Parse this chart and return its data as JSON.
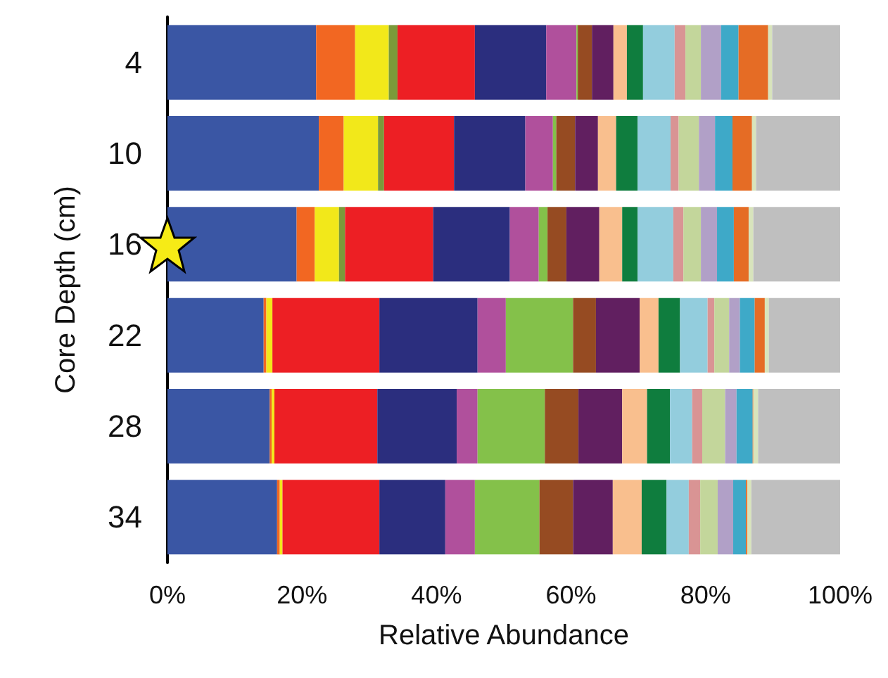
{
  "chart_data": {
    "type": "bar",
    "orientation": "horizontal",
    "stacked": true,
    "xlabel": "Relative Abundance",
    "ylabel": "Core Depth (cm)",
    "categories": [
      "4",
      "10",
      "16",
      "22",
      "28",
      "34"
    ],
    "xlim": [
      0,
      100
    ],
    "xticks": [
      {
        "value": 0,
        "label": "0%"
      },
      {
        "value": 20,
        "label": "20%"
      },
      {
        "value": 40,
        "label": "40%"
      },
      {
        "value": 60,
        "label": "60%"
      },
      {
        "value": 80,
        "label": "80%"
      },
      {
        "value": 100,
        "label": "100%"
      }
    ],
    "grid": false,
    "series": [
      {
        "color": "#3a56a4",
        "values": [
          22.1,
          22.5,
          19.2,
          14.3,
          15.2,
          16.3
        ]
      },
      {
        "color": "#f26722",
        "values": [
          5.8,
          3.7,
          2.7,
          0.4,
          0.3,
          0.4
        ]
      },
      {
        "color": "#f2e81a",
        "values": [
          5.0,
          5.1,
          3.6,
          0.9,
          0.4,
          0.4
        ]
      },
      {
        "color": "#7a9a3a",
        "values": [
          1.3,
          0.9,
          0.9,
          0,
          0,
          0
        ]
      },
      {
        "color": "#ed1f24",
        "values": [
          11.5,
          10.4,
          13.1,
          15.9,
          15.3,
          14.4
        ]
      },
      {
        "color": "#2b2e7e",
        "values": [
          10.6,
          10.6,
          11.4,
          14.6,
          11.8,
          9.8
        ]
      },
      {
        "color": "#b0509c",
        "values": [
          4.5,
          4.1,
          4.3,
          4.2,
          3.1,
          4.4
        ]
      },
      {
        "color": "#84c14a",
        "values": [
          0.2,
          0.5,
          1.3,
          10.0,
          10.0,
          9.6
        ]
      },
      {
        "color": "#964b22",
        "values": [
          2.1,
          2.8,
          2.8,
          3.4,
          5.0,
          5.0
        ]
      },
      {
        "color": "#611f60",
        "values": [
          3.2,
          3.4,
          4.9,
          6.5,
          6.5,
          5.9
        ]
      },
      {
        "color": "#f9bf8e",
        "values": [
          2.0,
          2.7,
          3.4,
          2.8,
          3.7,
          4.3
        ]
      },
      {
        "color": "#0f7d3e",
        "values": [
          2.4,
          3.2,
          2.3,
          3.2,
          3.4,
          3.7
        ]
      },
      {
        "color": "#93cddd",
        "values": [
          4.7,
          4.9,
          5.3,
          4.1,
          3.3,
          3.3
        ]
      },
      {
        "color": "#d99494",
        "values": [
          1.6,
          1.2,
          1.5,
          1.0,
          1.5,
          1.7
        ]
      },
      {
        "color": "#c3d69b",
        "values": [
          2.3,
          3.0,
          2.6,
          2.2,
          3.4,
          2.6
        ]
      },
      {
        "color": "#b1a0c7",
        "values": [
          3.0,
          2.4,
          2.4,
          1.6,
          1.7,
          2.3
        ]
      },
      {
        "color": "#3ea9c8",
        "values": [
          2.6,
          2.6,
          2.5,
          2.2,
          2.4,
          1.9
        ]
      },
      {
        "color": "#e56c25",
        "values": [
          4.4,
          2.9,
          2.2,
          1.5,
          0.1,
          0.2
        ]
      },
      {
        "color": "#d8e4bc",
        "values": [
          0.6,
          0.6,
          0.7,
          0.6,
          0.7,
          0.6
        ]
      },
      {
        "color": "#bfbfbf",
        "values": [
          10.1,
          12.5,
          12.9,
          10.6,
          12.2,
          13.2
        ]
      }
    ]
  }
}
